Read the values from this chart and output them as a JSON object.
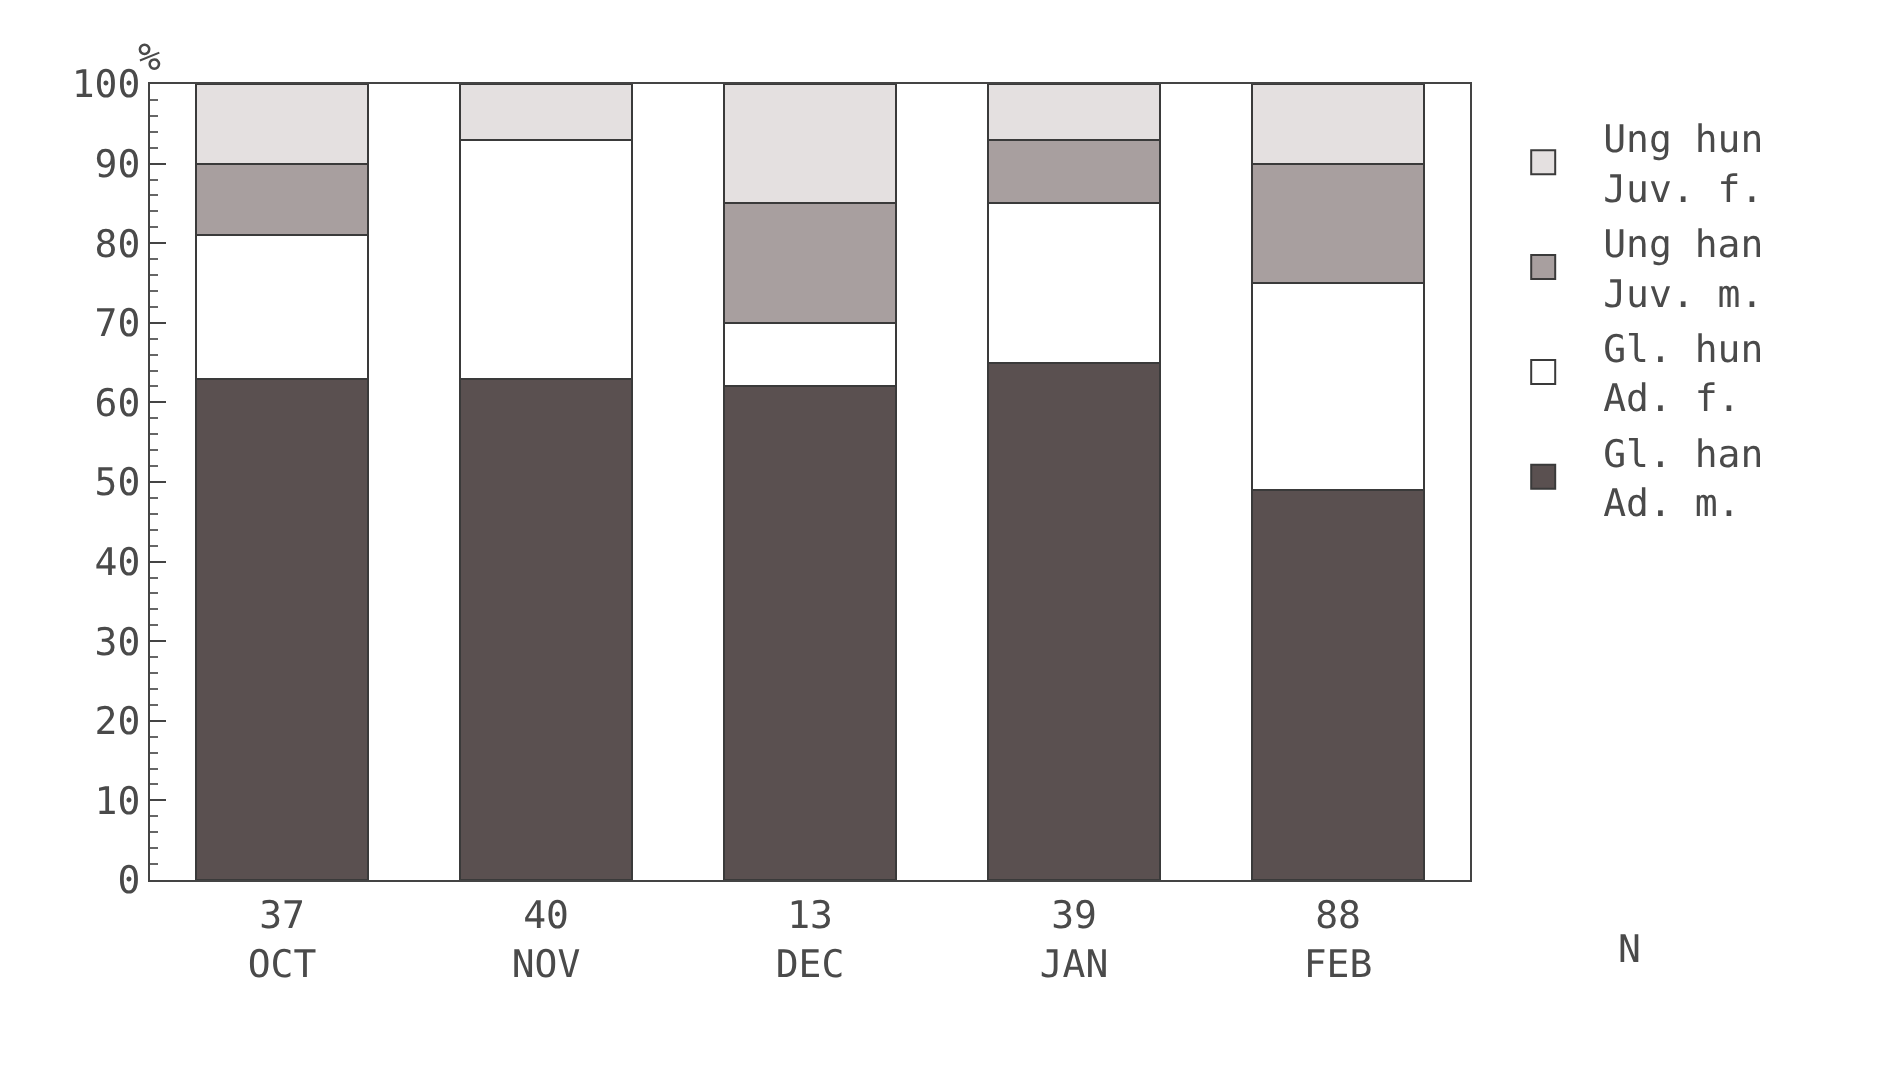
{
  "chart_data": {
    "type": "bar",
    "stacked": true,
    "ylabel": "%",
    "categories": [
      "37\nOCT",
      "40\nNOV",
      "13\nDEC",
      "39\nJAN",
      "88\nFEB"
    ],
    "series": [
      {
        "name": "Gl. han\nAd. m.",
        "color": "#5a5050",
        "values": [
          63,
          63,
          62,
          65,
          49
        ]
      },
      {
        "name": "Gl. hun\nAd. f.",
        "color": "#ffffff",
        "values": [
          18,
          30,
          8,
          20,
          26
        ]
      },
      {
        "name": "Ung han\nJuv. m.",
        "color": "#a89f9f",
        "values": [
          9,
          0,
          15,
          8,
          15
        ]
      },
      {
        "name": "Ung hun\nJuv. f.",
        "color": "#e4e0e0",
        "values": [
          10,
          7,
          15,
          7,
          10
        ]
      }
    ],
    "ylim": [
      0,
      100
    ],
    "yticks": [
      0,
      10,
      20,
      30,
      40,
      50,
      60,
      70,
      80,
      90,
      100
    ],
    "grid": false,
    "legend": "right",
    "annotations": [
      "N"
    ]
  }
}
